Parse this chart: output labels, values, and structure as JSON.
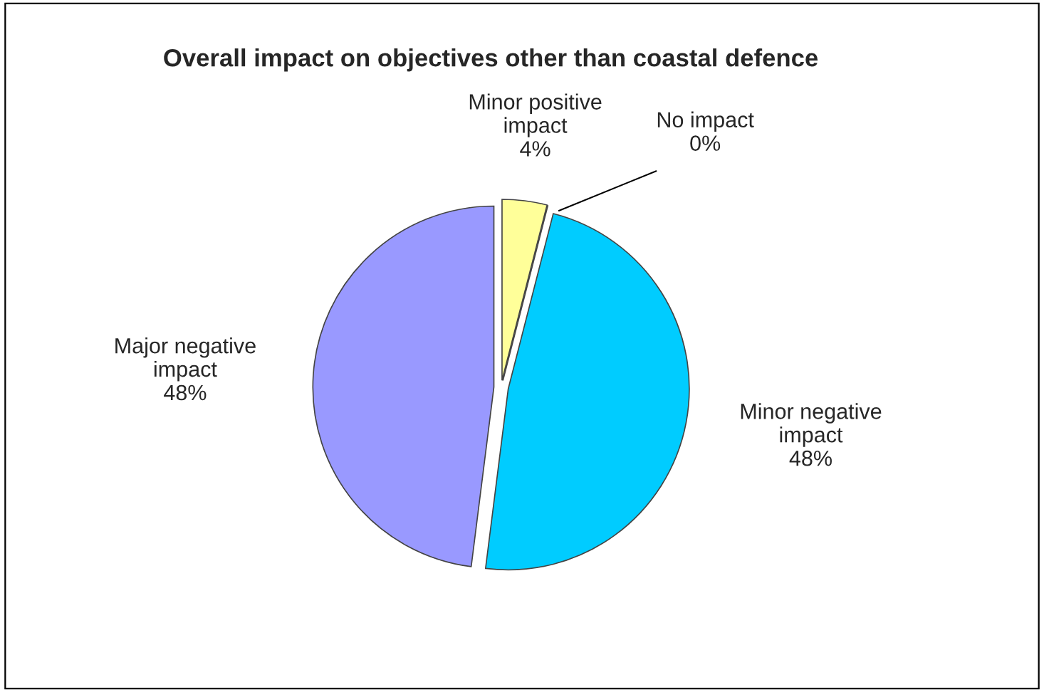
{
  "chart_data": {
    "type": "pie",
    "title": "Overall impact on objectives other than coastal defence",
    "categories": [
      "Minor positive impact",
      "No impact",
      "Minor negative impact",
      "Major negative impact"
    ],
    "values": [
      4,
      0,
      48,
      48
    ],
    "colors": [
      "#ffff99",
      "#ccffcc",
      "#00ccff",
      "#9999ff"
    ],
    "value_labels": [
      "4%",
      "0%",
      "48%",
      "48%"
    ],
    "legend": false
  }
}
